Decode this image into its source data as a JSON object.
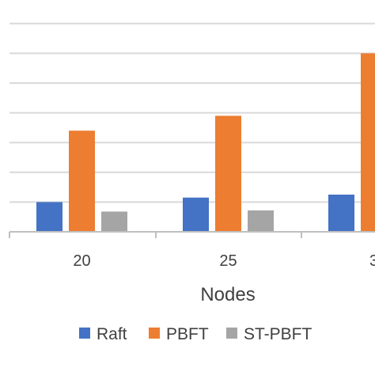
{
  "chart_data": {
    "type": "bar",
    "xlabel": "Nodes",
    "ylabel": "",
    "title": "",
    "categories": [
      "20",
      "25",
      "3"
    ],
    "series": [
      {
        "name": "Raft",
        "color": "#4472C4",
        "values": [
          1.0,
          1.15,
          1.25
        ]
      },
      {
        "name": "PBFT",
        "color": "#ED7D31",
        "values": [
          3.4,
          3.9,
          6.0
        ]
      },
      {
        "name": "ST-PBFT",
        "color": "#A5A5A5",
        "values": [
          0.68,
          0.72,
          null
        ]
      }
    ],
    "ylim": [
      0,
      7
    ],
    "grid": true,
    "legend_position": "bottom"
  }
}
